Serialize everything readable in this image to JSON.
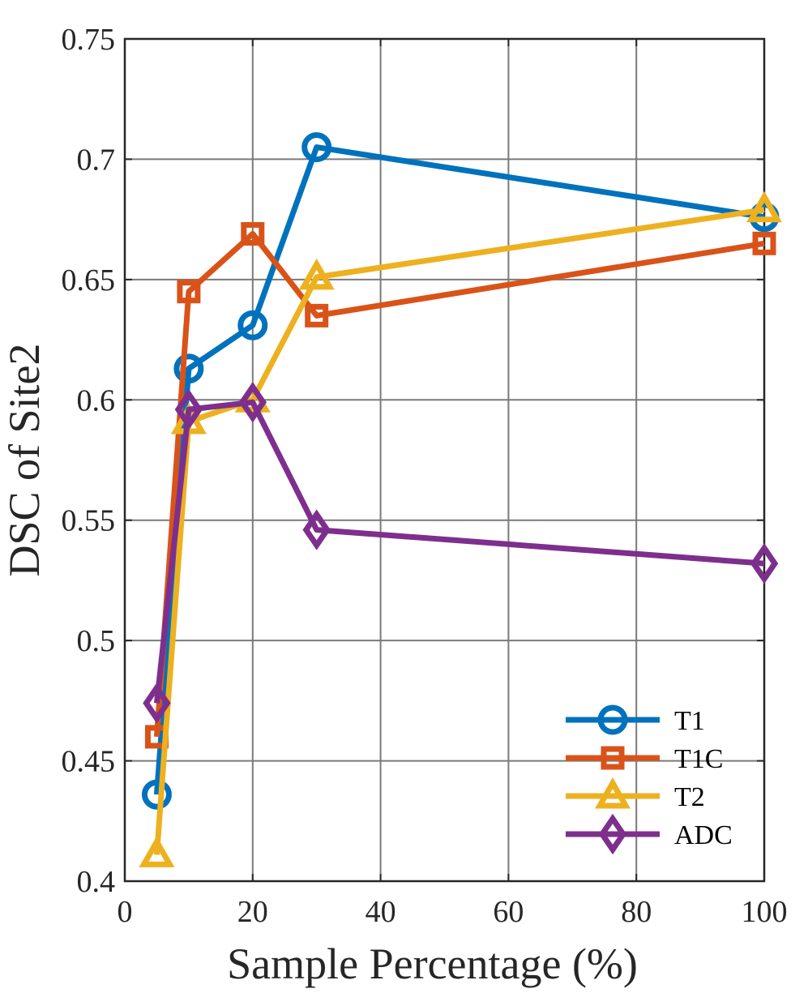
{
  "chart_data": {
    "type": "line",
    "xlabel": "Sample Percentage (%)",
    "ylabel": "DSC of Site2",
    "xlim": [
      0,
      100
    ],
    "ylim": [
      0.4,
      0.75
    ],
    "xticks": [
      0,
      20,
      40,
      60,
      80,
      100
    ],
    "xtick_labels": [
      "0",
      "20",
      "40",
      "60",
      "80",
      "100"
    ],
    "yticks": [
      0.4,
      0.45,
      0.5,
      0.55,
      0.6,
      0.65,
      0.7,
      0.75
    ],
    "ytick_labels": [
      "0.4",
      "0.45",
      "0.5",
      "0.55",
      "0.6",
      "0.65",
      "0.7",
      "0.75"
    ],
    "grid": true,
    "legend_position": "bottom-right",
    "x": [
      5,
      10,
      20,
      30,
      100
    ],
    "series": [
      {
        "name": "T1",
        "marker": "circle",
        "color": "#0072BD",
        "values": [
          0.436,
          0.613,
          0.631,
          0.705,
          0.676
        ]
      },
      {
        "name": "T1C",
        "marker": "square",
        "color": "#D95319",
        "values": [
          0.46,
          0.645,
          0.669,
          0.635,
          0.665
        ]
      },
      {
        "name": "T2",
        "marker": "triangle",
        "color": "#EDB120",
        "values": [
          0.411,
          0.591,
          0.6,
          0.651,
          0.679
        ]
      },
      {
        "name": "ADC",
        "marker": "diamond",
        "color": "#7E2F8E",
        "values": [
          0.474,
          0.596,
          0.599,
          0.546,
          0.532
        ]
      }
    ]
  }
}
